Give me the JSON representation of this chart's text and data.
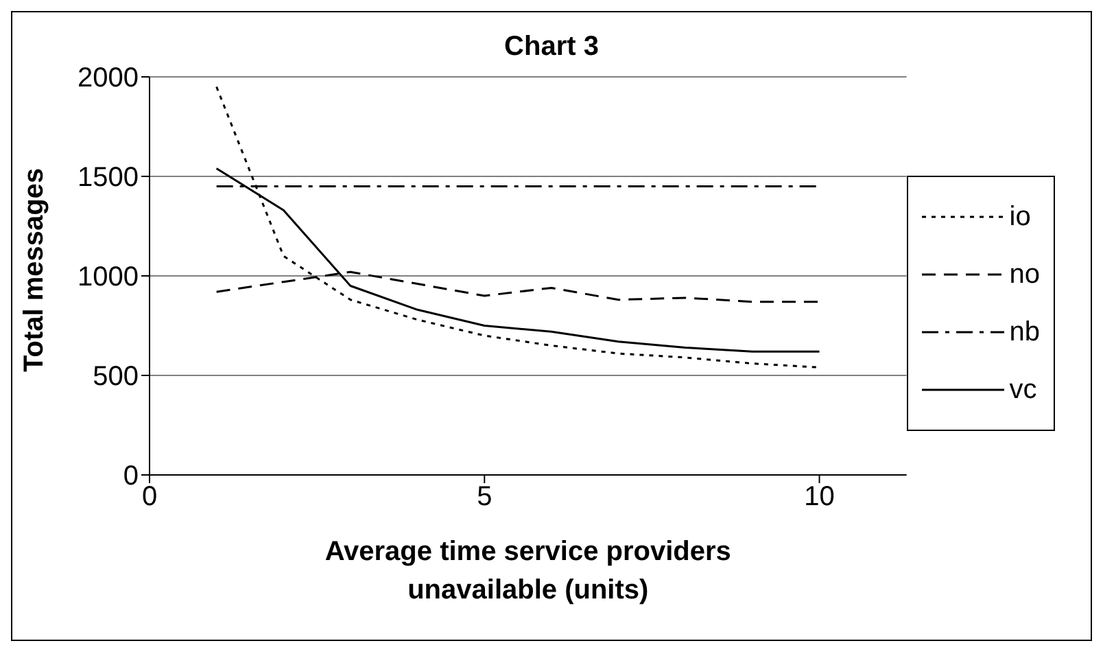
{
  "chart_data": {
    "type": "line",
    "title": "Chart 3",
    "xlabel": "Average time service providers unavailable (units)",
    "ylabel": "Total messages",
    "x": [
      1,
      2,
      3,
      4,
      5,
      6,
      7,
      8,
      9,
      10
    ],
    "series": [
      {
        "name": "io",
        "color": "#000000",
        "line_style": "dotted",
        "values": [
          1950,
          1100,
          880,
          780,
          700,
          650,
          610,
          590,
          560,
          540
        ]
      },
      {
        "name": "no",
        "color": "#000000",
        "line_style": "dashed",
        "values": [
          920,
          970,
          1020,
          960,
          900,
          940,
          880,
          890,
          870,
          870
        ]
      },
      {
        "name": "nb",
        "color": "#000000",
        "line_style": "dashdot",
        "values": [
          1450,
          1450,
          1450,
          1450,
          1450,
          1450,
          1450,
          1450,
          1450,
          1450
        ]
      },
      {
        "name": "vc",
        "color": "#000000",
        "line_style": "solid",
        "values": [
          1540,
          1330,
          950,
          830,
          750,
          720,
          670,
          640,
          620,
          620
        ]
      }
    ],
    "xlim": [
      0,
      11.3
    ],
    "xticks": [
      0,
      5,
      10
    ],
    "ylim": [
      0,
      2000
    ],
    "yticks": [
      0,
      500,
      1000,
      1500,
      2000
    ],
    "grid": "y",
    "legend": "right",
    "marker": "none"
  }
}
